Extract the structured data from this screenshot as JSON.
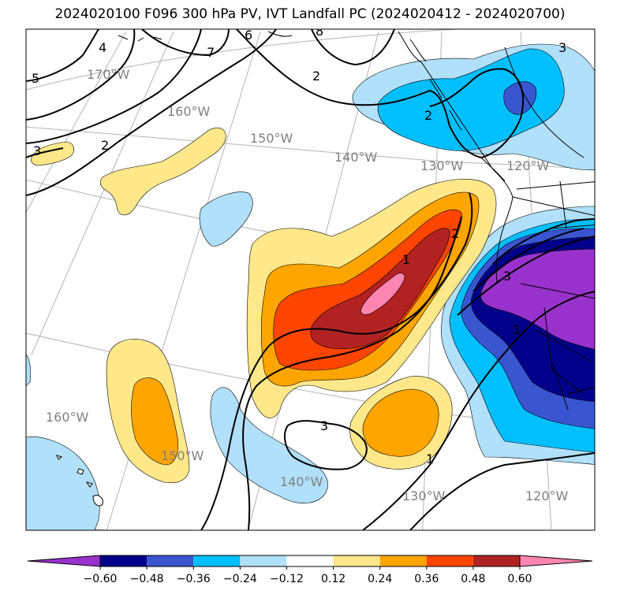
{
  "title": "2024020100 F096 300 hPa PV, IVT Landfall PC (2024020412 - 2024020700)",
  "longitude_labels": [
    "170°W",
    "160°W",
    "150°W",
    "140°W",
    "130°W",
    "120°W",
    "160°W",
    "150°W",
    "140°W",
    "130°W",
    "120°W"
  ],
  "contour_labels": [
    "5",
    "4",
    "7",
    "8",
    "6",
    "3",
    "2",
    "2",
    "2",
    "1",
    "2",
    "3",
    "1",
    "3",
    "3",
    "1"
  ],
  "colorbar": {
    "ticks": [
      "−0.60",
      "−0.48",
      "−0.36",
      "−0.24",
      "−0.12",
      "0.12",
      "0.24",
      "0.36",
      "0.48",
      "0.60"
    ],
    "colors": [
      "#9932cc",
      "#00008b",
      "#3a55d0",
      "#00bfff",
      "#b0e0fa",
      "#ffffff",
      "#ffe88a",
      "#ffa500",
      "#ff4500",
      "#b22222",
      "#ff85b0"
    ]
  },
  "fill_colors": {
    "neg_0_12": "#b0e0fa",
    "neg_0_24": "#00bfff",
    "neg_0_36": "#3a55d0",
    "neg_0_48": "#00008b",
    "neg_0_60": "#9932cc",
    "pos_0_12": "#ffe88a",
    "pos_0_24": "#ffa500",
    "pos_0_36": "#ff4500",
    "pos_0_48": "#b22222",
    "pos_0_60": "#ff85b0"
  }
}
